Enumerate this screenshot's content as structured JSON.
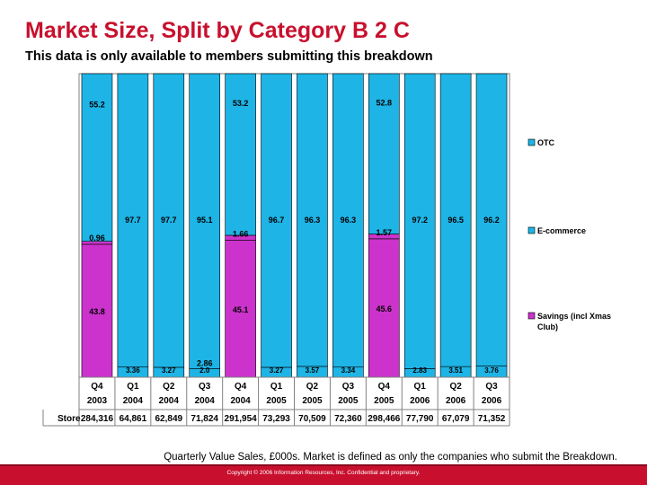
{
  "header": {
    "title": "Market Size, Split by Category B 2 C",
    "subtitle": "This data is only available to members submitting this breakdown"
  },
  "chart_data": {
    "type": "bar",
    "stacked": true,
    "percent": true,
    "categories": [
      "Q4 2003",
      "Q1 2004",
      "Q2 2004",
      "Q3 2004",
      "Q4 2004",
      "Q1 2005",
      "Q2 2005",
      "Q3 2005",
      "Q4 2005",
      "Q1 2006",
      "Q2 2006",
      "Q3 2006"
    ],
    "period_labels": [
      {
        "q": "Q4",
        "y": "2003"
      },
      {
        "q": "Q1",
        "y": "2004"
      },
      {
        "q": "Q2",
        "y": "2004"
      },
      {
        "q": "Q3",
        "y": "2004"
      },
      {
        "q": "Q4",
        "y": "2004"
      },
      {
        "q": "Q1",
        "y": "2005"
      },
      {
        "q": "Q2",
        "y": "2005"
      },
      {
        "q": "Q3",
        "y": "2005"
      },
      {
        "q": "Q4",
        "y": "2005"
      },
      {
        "q": "Q1",
        "y": "2006"
      },
      {
        "q": "Q2",
        "y": "2006"
      },
      {
        "q": "Q3",
        "y": "2006"
      }
    ],
    "series": [
      {
        "name": "Savings (incl Xmas Club)",
        "color": "#cc33cc",
        "values": [
          43.8,
          null,
          null,
          null,
          45.1,
          null,
          null,
          null,
          45.6,
          null,
          null,
          null
        ],
        "labels": [
          "43.8",
          "",
          "",
          "",
          "45.1",
          "",
          "",
          "",
          "45.6",
          "",
          "",
          ""
        ]
      },
      {
        "name": "E-commerce",
        "color": "#cc33cc",
        "values": [
          0.96,
          null,
          null,
          2.86,
          1.66,
          null,
          null,
          null,
          1.57,
          null,
          null,
          null
        ],
        "labels": [
          "0.96",
          "",
          "",
          "2.86",
          "1.66",
          "",
          "",
          "",
          "1.57",
          "",
          "",
          ""
        ]
      },
      {
        "name": "OTC",
        "color": "#1eb4e6",
        "values": [
          55.2,
          97.7,
          97.7,
          95.1,
          53.2,
          96.7,
          96.3,
          96.3,
          52.8,
          97.2,
          96.5,
          96.2
        ],
        "labels": [
          "55.2",
          "97.7",
          "97.7",
          "95.1",
          "53.2",
          "96.7",
          "96.3",
          "96.3",
          "52.8",
          "97.2",
          "96.5",
          "96.2"
        ]
      }
    ],
    "bottom_small_labels": [
      "",
      "3.36",
      "3.27",
      "2.0",
      "",
      "3.27",
      "3.57",
      "3.34",
      "",
      "2.83",
      "3.51",
      "3.76"
    ],
    "legend": [
      {
        "name": "OTC",
        "color": "#1eb4e6"
      },
      {
        "name": "E-commerce",
        "color": "#1eb4e6"
      },
      {
        "name": "Savings (incl Xmas Club)",
        "color": "#cc33cc"
      }
    ],
    "legend_position": "right",
    "store_row": {
      "label": "Store",
      "values": [
        "284,316",
        "64,861",
        "62,849",
        "71,824",
        "291,954",
        "73,293",
        "70,509",
        "72,360",
        "298,466",
        "77,790",
        "67,079",
        "71,352"
      ]
    },
    "ylim": [
      0,
      100
    ],
    "grid": false
  },
  "footnote": "Quarterly Value Sales, £000s. Market is defined as only the companies who submit the Breakdown.",
  "footer": {
    "copyright": "Copyright © 2006 Information Resources, Inc. Confidential and proprietary."
  }
}
